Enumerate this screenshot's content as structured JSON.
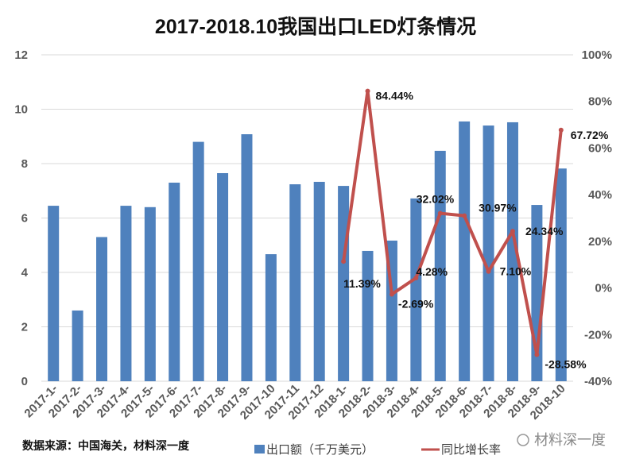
{
  "chart_data": {
    "type": "bar+line",
    "title": "2017-2018.10我国出口LED灯条情况",
    "categories": [
      "2017-1-",
      "2017-2-",
      "2017-3-",
      "2017-4-",
      "2017-5-",
      "2017-6-",
      "2017-7-",
      "2017-8-",
      "2017-9-",
      "2017-10",
      "2017-11",
      "2017-12",
      "2018-1-",
      "2018-2-",
      "2018-3-",
      "2018-4-",
      "2018-5-",
      "2018-6-",
      "2018-7-",
      "2018-8-",
      "2018-9-",
      "2018-10"
    ],
    "series": [
      {
        "name": "出口额（千万美元）",
        "type": "bar",
        "axis": "left",
        "color": "#4F81BD",
        "values": [
          6.45,
          2.6,
          5.3,
          6.45,
          6.4,
          7.3,
          8.8,
          7.65,
          9.08,
          4.67,
          7.24,
          7.33,
          7.18,
          4.79,
          5.17,
          6.72,
          8.47,
          9.55,
          9.4,
          9.52,
          6.48,
          7.82
        ]
      },
      {
        "name": "同比增长率",
        "type": "line",
        "axis": "right",
        "color": "#C0504D",
        "values": [
          null,
          null,
          null,
          null,
          null,
          null,
          null,
          null,
          null,
          null,
          null,
          null,
          11.39,
          84.44,
          -2.69,
          4.28,
          32.02,
          30.97,
          7.1,
          24.34,
          -28.58,
          67.72
        ],
        "labels": [
          null,
          null,
          null,
          null,
          null,
          null,
          null,
          null,
          null,
          null,
          null,
          null,
          "11.39%",
          "84.44%",
          "-2.69%",
          "4.28%",
          "32.02%",
          "30.97%",
          "7.10%",
          "24.34%",
          "-28.58%",
          "67.72%"
        ]
      }
    ],
    "y_left": {
      "range": [
        0,
        12
      ],
      "ticks": [
        "0",
        "2",
        "4",
        "6",
        "8",
        "10",
        "12"
      ]
    },
    "y_right": {
      "range": [
        -40,
        100
      ],
      "ticks": [
        "-40%",
        "-20%",
        "0%",
        "20%",
        "40%",
        "60%",
        "80%",
        "100%"
      ]
    },
    "grid": true,
    "legend": "bottom"
  },
  "source": "数据来源：中国海关，材料深一度",
  "watermark": "材料深一度"
}
